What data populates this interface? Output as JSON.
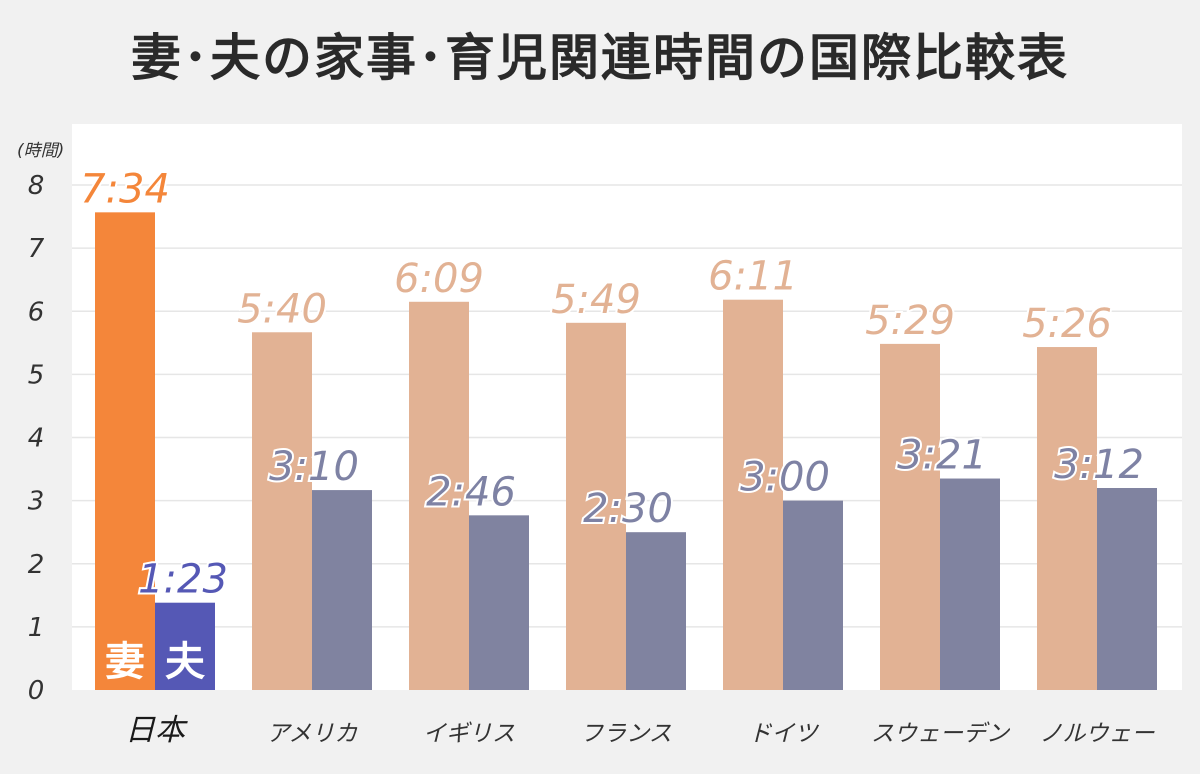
{
  "title": "妻･夫の家事･育児関連時間の国際比較表",
  "chart_data": {
    "type": "bar",
    "title": "妻･夫の家事･育児関連時間の国際比較表",
    "unit_label": "(時間)",
    "ylim": [
      0,
      8
    ],
    "yticks": [
      0,
      1,
      2,
      3,
      4,
      5,
      6,
      7,
      8
    ],
    "grid": true,
    "categories": [
      "日本",
      "アメリカ",
      "イギリス",
      "フランス",
      "ドイツ",
      "スウェーデン",
      "ノルウェー"
    ],
    "series": [
      {
        "name": "妻",
        "values": [
          7.567,
          5.667,
          6.15,
          5.817,
          6.183,
          5.483,
          5.433
        ],
        "labels": [
          "7:34",
          "5:40",
          "6:09",
          "5:49",
          "6:11",
          "5:29",
          "5:26"
        ]
      },
      {
        "name": "夫",
        "values": [
          1.383,
          3.167,
          2.767,
          2.5,
          3.0,
          3.35,
          3.2
        ],
        "labels": [
          "1:23",
          "3:10",
          "2:46",
          "2:30",
          "3:00",
          "3:21",
          "3:12"
        ]
      }
    ],
    "colors": {
      "wife_highlight": "#f4863a",
      "husband_highlight": "#5558b5",
      "wife": "#e2b294",
      "husband": "#8083a0",
      "wife_label": "#e2b294",
      "husband_label": "#7e82a4",
      "wife_highlight_label": "#f4863a",
      "husband_highlight_label": "#5558b5"
    }
  }
}
